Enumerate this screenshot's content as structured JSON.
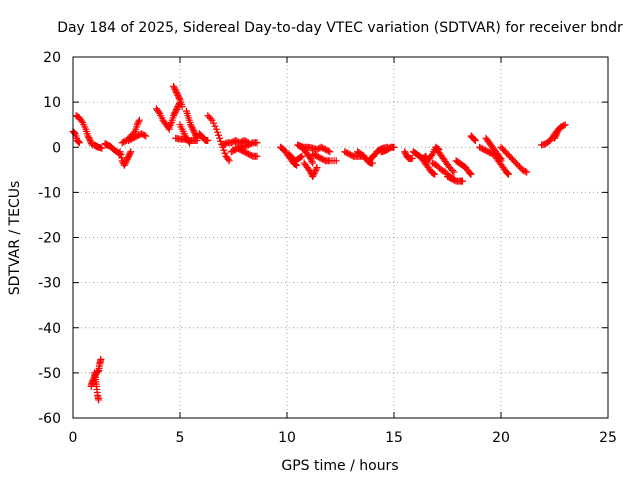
{
  "chart_data": {
    "type": "scatter",
    "title": "Day 184 of 2025, Sidereal Day-to-day VTEC variation (SDTVAR) for receiver bndr",
    "xlabel": "GPS time / hours",
    "ylabel": "SDTVAR / TECUs",
    "xlim": [
      0,
      25
    ],
    "ylim": [
      -60,
      20
    ],
    "xticks": [
      0,
      5,
      10,
      15,
      20,
      25
    ],
    "yticks": [
      -60,
      -50,
      -40,
      -30,
      -20,
      -10,
      0,
      10,
      20
    ],
    "grid": true,
    "marker": "+",
    "series_color": "#ff0000",
    "segments": [
      [
        [
          0.0,
          3.5
        ],
        [
          0.1,
          3.0
        ],
        [
          0.2,
          1.5
        ],
        [
          0.3,
          1.0
        ]
      ],
      [
        [
          0.15,
          7.0
        ],
        [
          0.3,
          6.5
        ],
        [
          0.45,
          5.5
        ],
        [
          0.6,
          4.0
        ],
        [
          0.7,
          2.5
        ],
        [
          0.8,
          1.5
        ],
        [
          0.9,
          0.5
        ]
      ],
      [
        [
          1.0,
          0.5
        ],
        [
          1.1,
          0.2
        ],
        [
          1.2,
          0.0
        ],
        [
          1.35,
          -0.2
        ]
      ],
      [
        [
          1.5,
          0.8
        ],
        [
          1.6,
          0.5
        ],
        [
          1.75,
          0.2
        ],
        [
          1.9,
          -0.5
        ],
        [
          2.05,
          -1.0
        ],
        [
          2.2,
          -1.5
        ]
      ],
      [
        [
          2.2,
          -1.0
        ],
        [
          2.3,
          -3.0
        ],
        [
          2.4,
          -4.0
        ],
        [
          2.5,
          -3.0
        ],
        [
          2.6,
          -2.0
        ],
        [
          2.7,
          -1.0
        ]
      ],
      [
        [
          2.3,
          1.0
        ],
        [
          2.5,
          1.5
        ],
        [
          2.7,
          2.5
        ],
        [
          2.9,
          3.5
        ],
        [
          3.0,
          5.0
        ],
        [
          3.1,
          6.0
        ]
      ],
      [
        [
          2.6,
          1.5
        ],
        [
          2.8,
          2.0
        ],
        [
          3.0,
          2.5
        ],
        [
          3.2,
          3.0
        ],
        [
          3.4,
          2.5
        ]
      ],
      [
        [
          3.9,
          8.5
        ],
        [
          4.05,
          7.5
        ],
        [
          4.2,
          6.0
        ],
        [
          4.35,
          5.0
        ],
        [
          4.5,
          4.0
        ]
      ],
      [
        [
          4.5,
          4.5
        ],
        [
          4.6,
          5.5
        ],
        [
          4.7,
          7.0
        ],
        [
          4.8,
          8.0
        ],
        [
          4.9,
          9.0
        ],
        [
          5.0,
          10.0
        ]
      ],
      [
        [
          4.7,
          13.5
        ],
        [
          4.8,
          12.5
        ],
        [
          4.9,
          11.5
        ],
        [
          5.0,
          10.5
        ],
        [
          5.1,
          9.0
        ]
      ],
      [
        [
          5.0,
          5.0
        ],
        [
          5.15,
          3.5
        ],
        [
          5.3,
          2.0
        ],
        [
          5.45,
          1.0
        ]
      ],
      [
        [
          5.3,
          8.0
        ],
        [
          5.4,
          6.5
        ],
        [
          5.5,
          5.0
        ],
        [
          5.6,
          4.0
        ],
        [
          5.7,
          3.0
        ],
        [
          5.8,
          2.0
        ]
      ],
      [
        [
          4.8,
          2.0
        ],
        [
          5.0,
          1.8
        ],
        [
          5.2,
          1.8
        ],
        [
          5.4,
          1.5
        ],
        [
          5.6,
          1.5
        ],
        [
          5.8,
          1.5
        ]
      ],
      [
        [
          5.9,
          3.0
        ],
        [
          6.0,
          2.5
        ],
        [
          6.1,
          2.0
        ],
        [
          6.2,
          1.5
        ],
        [
          6.3,
          1.5
        ]
      ],
      [
        [
          6.3,
          7.0
        ],
        [
          6.5,
          6.0
        ],
        [
          6.7,
          4.0
        ],
        [
          6.85,
          2.0
        ],
        [
          7.0,
          0.0
        ],
        [
          7.15,
          -2.0
        ],
        [
          7.3,
          -3.0
        ]
      ],
      [
        [
          7.0,
          0.5
        ],
        [
          7.2,
          1.0
        ],
        [
          7.4,
          1.0
        ],
        [
          7.6,
          1.5
        ],
        [
          7.8,
          1.0
        ],
        [
          8.0,
          1.5
        ],
        [
          8.2,
          1.0
        ]
      ],
      [
        [
          7.4,
          -1.0
        ],
        [
          7.6,
          -0.5
        ],
        [
          7.8,
          0.0
        ],
        [
          8.0,
          0.2
        ],
        [
          8.2,
          0.5
        ],
        [
          8.4,
          1.0
        ],
        [
          8.6,
          1.0
        ]
      ],
      [
        [
          7.6,
          0.0
        ],
        [
          7.8,
          -0.5
        ],
        [
          8.0,
          -1.0
        ],
        [
          8.2,
          -1.5
        ],
        [
          8.4,
          -2.0
        ],
        [
          8.6,
          -2.0
        ]
      ],
      [
        [
          9.7,
          0.0
        ],
        [
          9.85,
          -0.5
        ],
        [
          10.0,
          -1.5
        ],
        [
          10.15,
          -2.5
        ],
        [
          10.3,
          -3.5
        ],
        [
          10.45,
          -4.0
        ]
      ],
      [
        [
          10.1,
          -1.5
        ],
        [
          10.25,
          -2.5
        ],
        [
          10.4,
          -3.0
        ],
        [
          10.55,
          -2.5
        ],
        [
          10.7,
          -2.0
        ]
      ],
      [
        [
          10.5,
          0.5
        ],
        [
          10.65,
          0.2
        ],
        [
          10.8,
          -0.5
        ],
        [
          10.95,
          -1.5
        ],
        [
          11.1,
          -2.5
        ],
        [
          11.2,
          -3.5
        ]
      ],
      [
        [
          10.8,
          -3.5
        ],
        [
          10.95,
          -4.5
        ],
        [
          11.1,
          -5.5
        ],
        [
          11.2,
          -6.5
        ],
        [
          11.3,
          -5.5
        ],
        [
          11.4,
          -4.5
        ]
      ],
      [
        [
          10.6,
          0.2
        ],
        [
          10.8,
          0.0
        ],
        [
          11.0,
          0.0
        ],
        [
          11.2,
          -0.2
        ],
        [
          11.4,
          -0.5
        ],
        [
          11.6,
          0.0
        ],
        [
          11.8,
          -0.5
        ],
        [
          12.0,
          -1.0
        ]
      ],
      [
        [
          11.2,
          -1.5
        ],
        [
          11.4,
          -2.0
        ],
        [
          11.6,
          -2.5
        ],
        [
          11.8,
          -3.0
        ],
        [
          12.0,
          -3.0
        ],
        [
          12.3,
          -3.0
        ]
      ],
      [
        [
          12.7,
          -1.0
        ],
        [
          12.9,
          -1.5
        ],
        [
          13.1,
          -2.0
        ],
        [
          13.3,
          -2.0
        ],
        [
          13.5,
          -2.0
        ]
      ],
      [
        [
          13.3,
          -1.0
        ],
        [
          13.45,
          -1.5
        ],
        [
          13.6,
          -2.0
        ],
        [
          13.75,
          -3.0
        ],
        [
          13.9,
          -3.5
        ],
        [
          14.0,
          -3.5
        ]
      ],
      [
        [
          13.9,
          -2.5
        ],
        [
          14.05,
          -2.0
        ],
        [
          14.2,
          -1.0
        ],
        [
          14.35,
          -0.5
        ],
        [
          14.5,
          -0.2
        ],
        [
          14.7,
          0.0
        ]
      ],
      [
        [
          14.4,
          -1.0
        ],
        [
          14.55,
          -0.8
        ],
        [
          14.7,
          -0.5
        ],
        [
          14.85,
          0.0
        ],
        [
          15.0,
          0.0
        ]
      ],
      [
        [
          15.5,
          -1.0
        ],
        [
          15.6,
          -2.0
        ],
        [
          15.7,
          -2.5
        ],
        [
          15.85,
          -2.5
        ]
      ],
      [
        [
          15.9,
          -1.0
        ],
        [
          16.05,
          -1.5
        ],
        [
          16.2,
          -2.0
        ],
        [
          16.35,
          -2.5
        ],
        [
          16.5,
          -2.0
        ]
      ],
      [
        [
          16.3,
          -2.5
        ],
        [
          16.45,
          -3.5
        ],
        [
          16.6,
          -4.5
        ],
        [
          16.75,
          -5.5
        ],
        [
          16.9,
          -6.0
        ]
      ],
      [
        [
          16.5,
          -3.5
        ],
        [
          16.65,
          -2.5
        ],
        [
          16.8,
          -1.5
        ],
        [
          16.95,
          0.0
        ],
        [
          17.1,
          -0.5
        ]
      ],
      [
        [
          17.0,
          -0.5
        ],
        [
          17.15,
          -1.5
        ],
        [
          17.3,
          -2.5
        ],
        [
          17.45,
          -3.5
        ],
        [
          17.6,
          -4.5
        ],
        [
          17.8,
          -5.5
        ]
      ],
      [
        [
          16.8,
          -3.5
        ],
        [
          17.0,
          -4.0
        ],
        [
          17.2,
          -5.0
        ],
        [
          17.4,
          -5.5
        ],
        [
          17.6,
          -6.5
        ],
        [
          17.8,
          -7.0
        ]
      ],
      [
        [
          17.5,
          -6.5
        ],
        [
          17.7,
          -7.0
        ],
        [
          17.9,
          -7.5
        ],
        [
          18.1,
          -7.5
        ],
        [
          18.2,
          -7.5
        ]
      ],
      [
        [
          17.9,
          -3.0
        ],
        [
          18.05,
          -3.5
        ],
        [
          18.2,
          -4.0
        ],
        [
          18.35,
          -4.5
        ],
        [
          18.5,
          -5.5
        ],
        [
          18.6,
          -6.0
        ]
      ],
      [
        [
          18.6,
          2.5
        ],
        [
          18.7,
          2.0
        ],
        [
          18.8,
          1.5
        ]
      ],
      [
        [
          19.0,
          0.0
        ],
        [
          19.2,
          -0.5
        ],
        [
          19.4,
          -1.0
        ],
        [
          19.6,
          -1.5
        ],
        [
          19.8,
          -2.0
        ],
        [
          20.0,
          -2.5
        ]
      ],
      [
        [
          19.3,
          2.0
        ],
        [
          19.45,
          1.0
        ],
        [
          19.6,
          0.0
        ],
        [
          19.75,
          -1.0
        ],
        [
          19.9,
          -2.0
        ],
        [
          20.0,
          -3.0
        ]
      ],
      [
        [
          19.8,
          -2.5
        ],
        [
          19.95,
          -3.5
        ],
        [
          20.1,
          -4.5
        ],
        [
          20.25,
          -5.5
        ],
        [
          20.35,
          -6.0
        ]
      ],
      [
        [
          20.0,
          0.0
        ],
        [
          20.2,
          -1.0
        ],
        [
          20.4,
          -2.0
        ],
        [
          20.6,
          -3.0
        ],
        [
          20.8,
          -4.0
        ],
        [
          21.0,
          -5.0
        ],
        [
          21.2,
          -5.5
        ]
      ],
      [
        [
          21.9,
          0.5
        ],
        [
          22.1,
          0.8
        ],
        [
          22.3,
          1.5
        ],
        [
          22.45,
          2.5
        ],
        [
          22.6,
          3.5
        ],
        [
          22.8,
          4.5
        ],
        [
          23.0,
          5.0
        ]
      ],
      [
        [
          22.5,
          2.0
        ],
        [
          22.6,
          3.0
        ],
        [
          22.7,
          4.0
        ],
        [
          22.8,
          4.5
        ]
      ],
      [
        [
          1.0,
          -50.0
        ],
        [
          1.05,
          -51.5
        ],
        [
          1.1,
          -53.0
        ],
        [
          1.15,
          -55.0
        ],
        [
          1.2,
          -56.0
        ]
      ],
      [
        [
          0.85,
          -53.0
        ],
        [
          0.9,
          -52.0
        ],
        [
          1.0,
          -51.0
        ],
        [
          1.1,
          -50.0
        ],
        [
          1.2,
          -49.5
        ],
        [
          1.25,
          -48.0
        ],
        [
          1.3,
          -47.0
        ]
      ]
    ]
  }
}
